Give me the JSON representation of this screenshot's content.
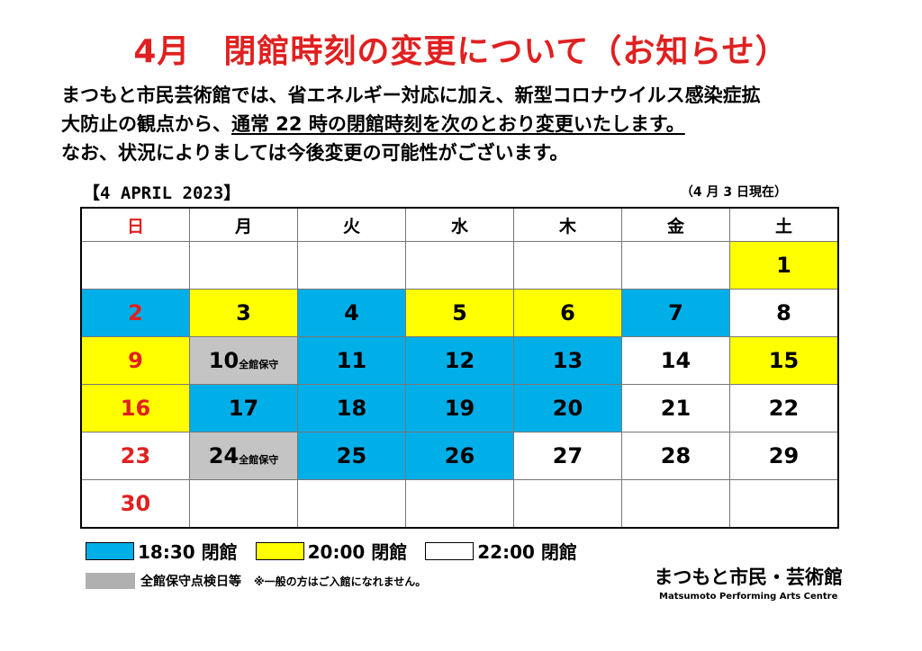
{
  "title": "4月　閉館時刻の変更について（お知らせ）",
  "paragraph": {
    "line1": "まつもと市民芸術館では、省エネルギー対応に加え、新型コロナウイルス感染症拡",
    "line2_plain": "大防止の観点から、",
    "line2_underlined": "通常 22 時の閉館時刻を次のとおり変更いたします。",
    "line3": "なお、状況によりましては今後変更の可能性がございます。"
  },
  "calendar": {
    "title": "【4 APRIL 2023】",
    "as_of": "（4 月 3 日現在）",
    "weekdays": [
      "日",
      "月",
      "火",
      "水",
      "木",
      "金",
      "土"
    ],
    "note_label": "全館保守",
    "weeks": [
      [
        {
          "d": "",
          "c": "white"
        },
        {
          "d": "",
          "c": "white"
        },
        {
          "d": "",
          "c": "white"
        },
        {
          "d": "",
          "c": "white"
        },
        {
          "d": "",
          "c": "white"
        },
        {
          "d": "",
          "c": "white"
        },
        {
          "d": "1",
          "c": "yellow"
        }
      ],
      [
        {
          "d": "2",
          "c": "blue"
        },
        {
          "d": "3",
          "c": "yellow"
        },
        {
          "d": "4",
          "c": "blue"
        },
        {
          "d": "5",
          "c": "yellow"
        },
        {
          "d": "6",
          "c": "yellow"
        },
        {
          "d": "7",
          "c": "blue"
        },
        {
          "d": "8",
          "c": "white"
        }
      ],
      [
        {
          "d": "9",
          "c": "yellow"
        },
        {
          "d": "10",
          "c": "gray",
          "note": true
        },
        {
          "d": "11",
          "c": "blue"
        },
        {
          "d": "12",
          "c": "blue"
        },
        {
          "d": "13",
          "c": "blue"
        },
        {
          "d": "14",
          "c": "white"
        },
        {
          "d": "15",
          "c": "yellow"
        }
      ],
      [
        {
          "d": "16",
          "c": "yellow"
        },
        {
          "d": "17",
          "c": "blue"
        },
        {
          "d": "18",
          "c": "blue"
        },
        {
          "d": "19",
          "c": "blue"
        },
        {
          "d": "20",
          "c": "blue"
        },
        {
          "d": "21",
          "c": "white"
        },
        {
          "d": "22",
          "c": "white"
        }
      ],
      [
        {
          "d": "23",
          "c": "white"
        },
        {
          "d": "24",
          "c": "gray",
          "note": true
        },
        {
          "d": "25",
          "c": "blue"
        },
        {
          "d": "26",
          "c": "blue"
        },
        {
          "d": "27",
          "c": "white"
        },
        {
          "d": "28",
          "c": "white"
        },
        {
          "d": "29",
          "c": "white"
        }
      ],
      [
        {
          "d": "30",
          "c": "white"
        },
        {
          "d": "",
          "c": "white"
        },
        {
          "d": "",
          "c": "white"
        },
        {
          "d": "",
          "c": "white"
        },
        {
          "d": "",
          "c": "white"
        },
        {
          "d": "",
          "c": "white"
        },
        {
          "d": "",
          "c": "white"
        }
      ]
    ]
  },
  "legend": {
    "blue_label": "18:30 閉館",
    "yellow_label": "20:00 閉館",
    "white_label": "22:00 閉館",
    "gray_label": "全館保守点検日等",
    "gray_note": "※一般の方はご入館になれません。"
  },
  "logo": {
    "jp": "まつもと市民・芸術館",
    "en": "Matsumoto Performing Arts Centre"
  },
  "colors": {
    "title": "#e02020",
    "sunday": "#e02020",
    "blue": "#00aee8",
    "yellow": "#ffff00",
    "gray": "#c4c4c4"
  }
}
